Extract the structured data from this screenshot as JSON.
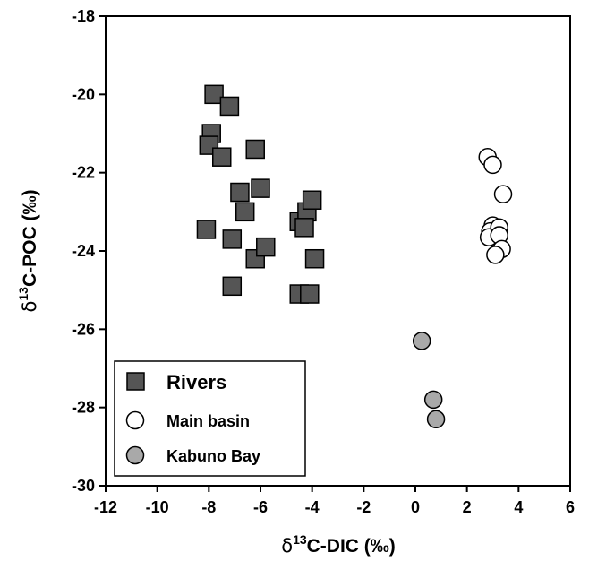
{
  "chart_data": {
    "type": "scatter",
    "title": "",
    "xlabel": {
      "delta": "δ",
      "sup": "13",
      "rest": "C-DIC (‰)"
    },
    "ylabel": {
      "delta": "δ",
      "sup": "13",
      "rest": "C-POC (‰)"
    },
    "xlim": [
      -12,
      6
    ],
    "ylim": [
      -30,
      -18
    ],
    "xticks": [
      -12,
      -10,
      -8,
      -6,
      -4,
      -2,
      0,
      2,
      4,
      6
    ],
    "yticks": [
      -30,
      -28,
      -26,
      -24,
      -22,
      -20,
      -18
    ],
    "grid": false,
    "legend_position": "bottom-left",
    "series": [
      {
        "name": "Rivers",
        "marker": "square",
        "fill": "#555555",
        "points": [
          [
            -7.8,
            -20.0
          ],
          [
            -7.2,
            -20.3
          ],
          [
            -7.9,
            -21.0
          ],
          [
            -8.0,
            -21.3
          ],
          [
            -7.5,
            -21.6
          ],
          [
            -6.2,
            -21.4
          ],
          [
            -6.8,
            -22.5
          ],
          [
            -6.0,
            -22.4
          ],
          [
            -6.6,
            -23.0
          ],
          [
            -8.1,
            -23.45
          ],
          [
            -7.1,
            -23.7
          ],
          [
            -6.2,
            -24.2
          ],
          [
            -5.8,
            -23.9
          ],
          [
            -7.1,
            -24.9
          ],
          [
            -4.5,
            -23.25
          ],
          [
            -4.2,
            -23.0
          ],
          [
            -4.0,
            -22.7
          ],
          [
            -4.3,
            -23.4
          ],
          [
            -3.9,
            -24.2
          ],
          [
            -4.5,
            -25.1
          ],
          [
            -4.1,
            -25.1
          ]
        ]
      },
      {
        "name": "Main basin",
        "marker": "circle",
        "fill": "#ffffff",
        "points": [
          [
            2.8,
            -21.6
          ],
          [
            3.0,
            -21.8
          ],
          [
            3.4,
            -22.55
          ],
          [
            3.0,
            -23.35
          ],
          [
            2.9,
            -23.5
          ],
          [
            2.85,
            -23.65
          ],
          [
            3.25,
            -23.4
          ],
          [
            3.25,
            -23.6
          ],
          [
            3.35,
            -23.95
          ],
          [
            3.1,
            -24.1
          ]
        ]
      },
      {
        "name": "Kabuno Bay",
        "marker": "circle",
        "fill": "#a9a9a9",
        "points": [
          [
            0.25,
            -26.3
          ],
          [
            0.7,
            -27.8
          ],
          [
            0.8,
            -28.3
          ]
        ]
      }
    ]
  }
}
